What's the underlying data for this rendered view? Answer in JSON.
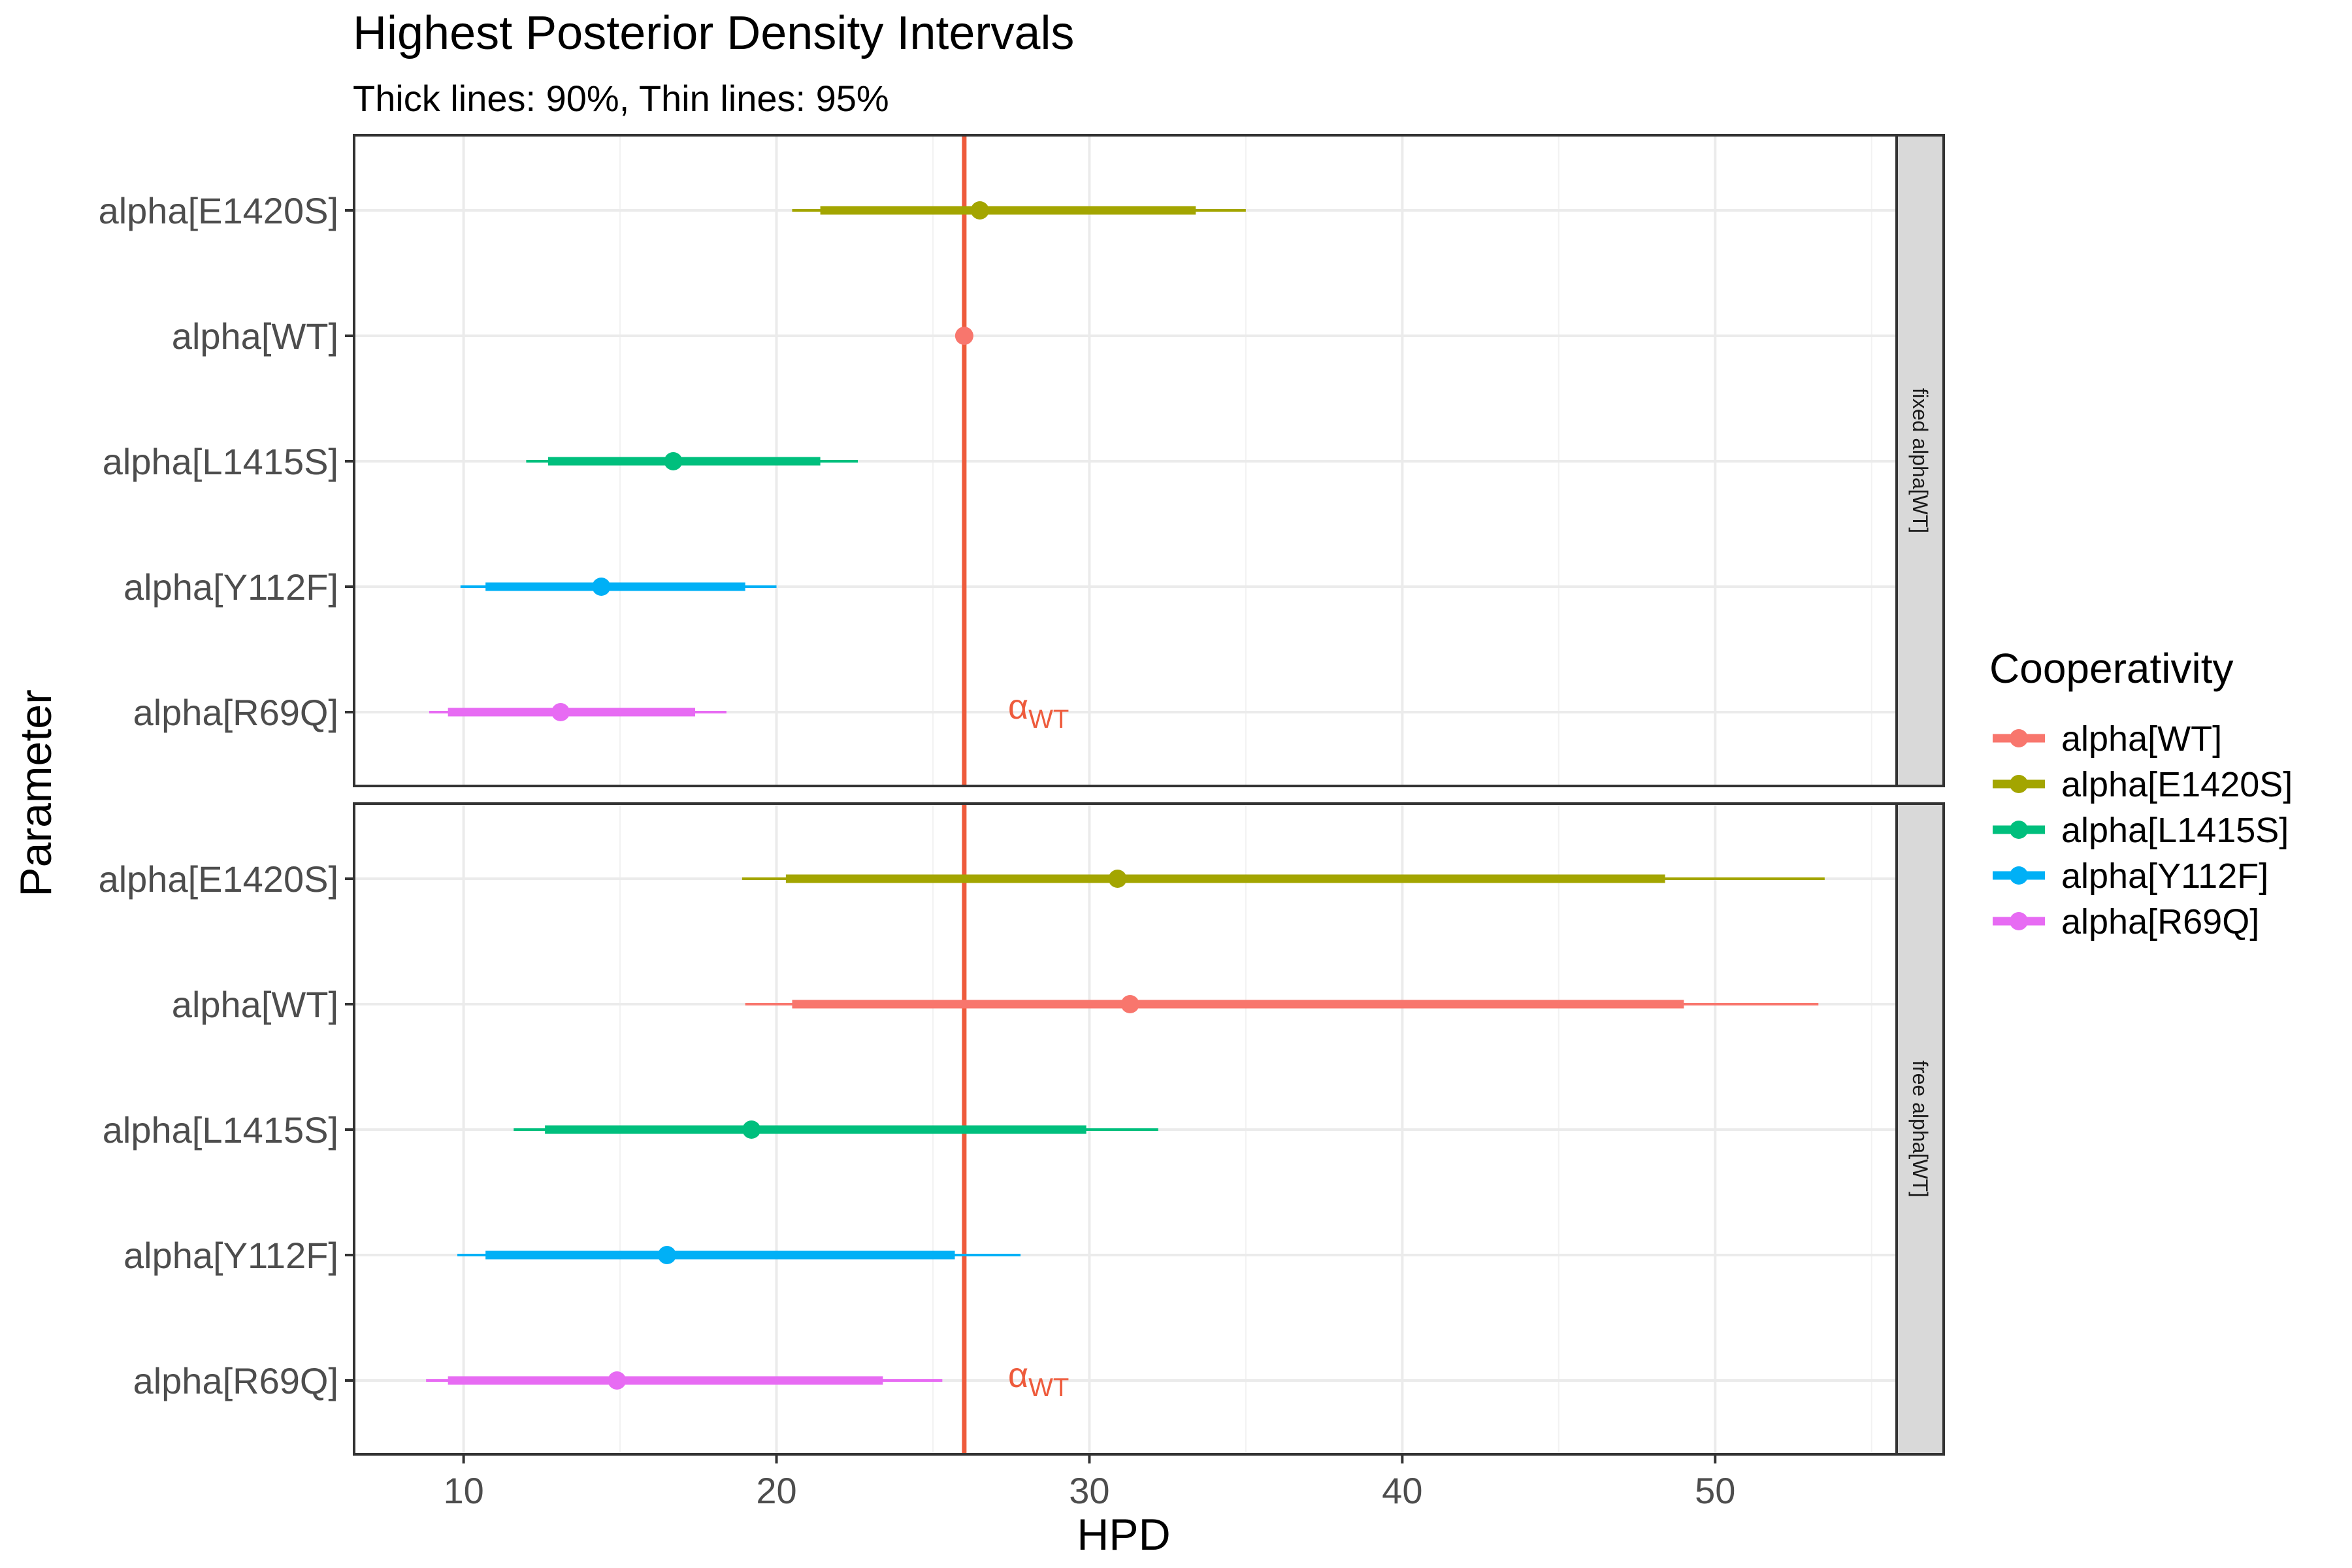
{
  "chart_data": {
    "type": "interval",
    "title": "Highest Posterior Density Intervals",
    "subtitle": "Thick lines: 90%, Thin lines: 95%",
    "xlabel": "HPD",
    "ylabel": "Parameter",
    "xlim": [
      6.5,
      55.8
    ],
    "x_ticks": [
      10,
      20,
      30,
      40,
      50
    ],
    "grid": true,
    "legend": {
      "title": "Cooperativity",
      "position": "right",
      "entries": [
        {
          "label": "alpha[WT]",
          "color": "#F8766D"
        },
        {
          "label": "alpha[E1420S]",
          "color": "#A3A500"
        },
        {
          "label": "alpha[L1415S]",
          "color": "#00BF7D"
        },
        {
          "label": "alpha[Y112F]",
          "color": "#00B0F6"
        },
        {
          "label": "alpha[R69Q]",
          "color": "#E76BF3"
        }
      ]
    },
    "reference_line": {
      "x": 26.0,
      "color": "#EE5B3C",
      "label": "α",
      "label_sub": "WT",
      "label_x": 27.4
    },
    "facets": [
      {
        "label": "fixed alpha[WT]",
        "rows": [
          {
            "parameter": "alpha[E1420S]",
            "color": "#A3A500",
            "median": 26.5,
            "hpd90": [
              21.4,
              33.4
            ],
            "hpd95": [
              20.5,
              35.0
            ]
          },
          {
            "parameter": "alpha[WT]",
            "color": "#F8766D",
            "median": 26.0,
            "hpd90": [
              26.0,
              26.0
            ],
            "hpd95": [
              26.0,
              26.0
            ]
          },
          {
            "parameter": "alpha[L1415S]",
            "color": "#00BF7D",
            "median": 16.7,
            "hpd90": [
              12.7,
              21.4
            ],
            "hpd95": [
              12.0,
              22.6
            ]
          },
          {
            "parameter": "alpha[Y112F]",
            "color": "#00B0F6",
            "median": 14.4,
            "hpd90": [
              10.7,
              19.0
            ],
            "hpd95": [
              9.9,
              20.0
            ]
          },
          {
            "parameter": "alpha[R69Q]",
            "color": "#E76BF3",
            "median": 13.1,
            "hpd90": [
              9.5,
              17.4
            ],
            "hpd95": [
              8.9,
              18.4
            ]
          }
        ]
      },
      {
        "label": "free alpha[WT]",
        "rows": [
          {
            "parameter": "alpha[E1420S]",
            "color": "#A3A500",
            "median": 30.9,
            "hpd90": [
              20.3,
              48.4
            ],
            "hpd95": [
              18.9,
              53.5
            ]
          },
          {
            "parameter": "alpha[WT]",
            "color": "#F8766D",
            "median": 31.3,
            "hpd90": [
              20.5,
              49.0
            ],
            "hpd95": [
              19.0,
              53.3
            ]
          },
          {
            "parameter": "alpha[L1415S]",
            "color": "#00BF7D",
            "median": 19.2,
            "hpd90": [
              12.6,
              29.9
            ],
            "hpd95": [
              11.6,
              32.2
            ]
          },
          {
            "parameter": "alpha[Y112F]",
            "color": "#00B0F6",
            "median": 16.5,
            "hpd90": [
              10.7,
              25.7
            ],
            "hpd95": [
              9.8,
              27.8
            ]
          },
          {
            "parameter": "alpha[R69Q]",
            "color": "#E76BF3",
            "median": 14.9,
            "hpd90": [
              9.5,
              23.4
            ],
            "hpd95": [
              8.8,
              25.3
            ]
          }
        ]
      }
    ]
  }
}
